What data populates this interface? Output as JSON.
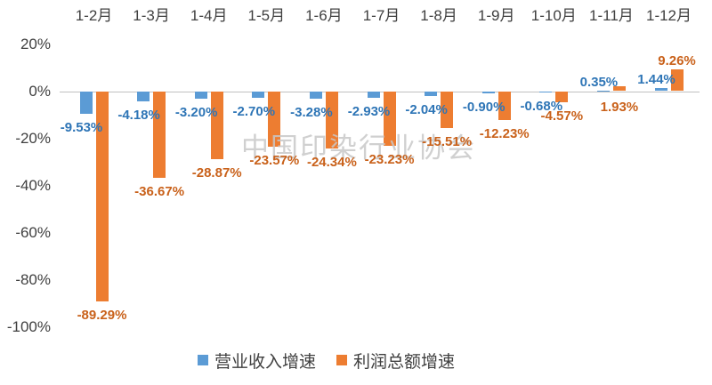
{
  "watermark": {
    "text": "中国印染行业协会"
  },
  "colors": {
    "revenue_bar": "#5B9BD5",
    "profit_bar": "#ED7D31",
    "revenue_label": "#2E75B6",
    "profit_label": "#C9611A",
    "axis_line": "#C0C0C0",
    "axis_text": "#3F3F3F",
    "watermark": "#C8C8C8"
  },
  "y_axis": {
    "ticks": [
      {
        "value": 20,
        "label": "20%"
      },
      {
        "value": 0,
        "label": "0%"
      },
      {
        "value": -20,
        "label": "-20%"
      },
      {
        "value": -40,
        "label": "-40%"
      },
      {
        "value": -60,
        "label": "-60%"
      },
      {
        "value": -80,
        "label": "-80%"
      },
      {
        "value": -100,
        "label": "-100%"
      }
    ]
  },
  "legend": {
    "items": [
      {
        "key": "revenue",
        "label": "营业收入增速",
        "color": "#5B9BD5"
      },
      {
        "key": "profit",
        "label": "利润总额增速",
        "color": "#ED7D31"
      }
    ]
  },
  "chart_data": {
    "type": "bar",
    "categories": [
      "1-2月",
      "1-3月",
      "1-4月",
      "1-5月",
      "1-6月",
      "1-7月",
      "1-8月",
      "1-9月",
      "1-10月",
      "1-11月",
      "1-12月"
    ],
    "series": [
      {
        "name": "营业收入增速",
        "key": "revenue",
        "values": [
          -9.53,
          -4.18,
          -3.2,
          -2.7,
          -3.28,
          -2.93,
          -2.04,
          -0.9,
          -0.68,
          0.35,
          1.44
        ],
        "labels": [
          "-9.53%",
          "-4.18%",
          "-3.20%",
          "-2.70%",
          "-3.28%",
          "-2.93%",
          "-2.04%",
          "-0.90%",
          "-0.68%",
          "0.35%",
          "1.44%"
        ]
      },
      {
        "name": "利润总额增速",
        "key": "profit",
        "values": [
          -89.29,
          -36.67,
          -28.87,
          -23.57,
          -24.34,
          -23.23,
          -15.51,
          -12.23,
          -4.57,
          1.93,
          9.26
        ],
        "labels": [
          "-89.29%",
          "-36.67%",
          "-28.87%",
          "-23.57%",
          "-24.34%",
          "-23.23%",
          "-15.51%",
          "-12.23%",
          "-4.57%",
          "1.93%",
          "9.26%"
        ]
      }
    ],
    "ylim": [
      -100,
      20
    ],
    "y_tick_step": 20,
    "grid": false,
    "value_unit": "%",
    "legend_position": "bottom",
    "category_axis_position": "top"
  }
}
